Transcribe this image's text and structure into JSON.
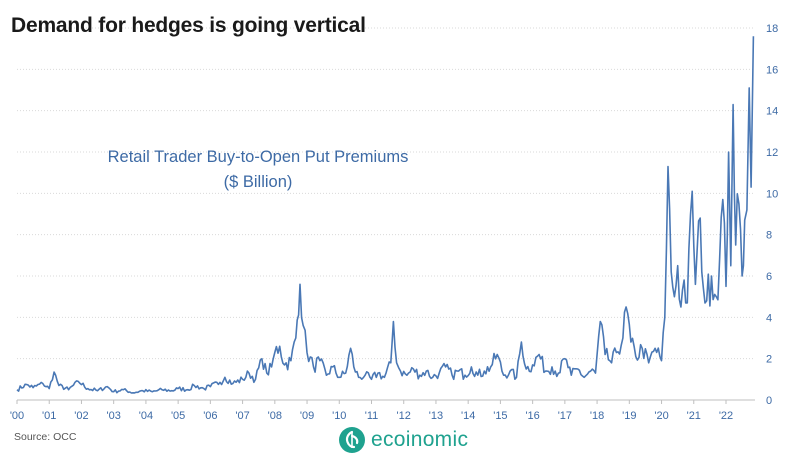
{
  "chart_data": {
    "type": "line",
    "title": "Demand for hedges is going vertical",
    "annotation": [
      "Retail Trader Buy-to-Open Put Premiums",
      "($ Billion)"
    ],
    "xlabel": "",
    "ylabel": "",
    "x_tick_labels": [
      "'00",
      "'01",
      "'02",
      "'03",
      "'04",
      "'05",
      "'06",
      "'07",
      "'08",
      "'09",
      "'10",
      "'11",
      "'12",
      "'13",
      "'14",
      "'15",
      "'16",
      "'17",
      "'18",
      "'19",
      "'20",
      "'21",
      "'22"
    ],
    "y_ticks": [
      0,
      2,
      4,
      6,
      8,
      10,
      12,
      14,
      16,
      18
    ],
    "y_tick_labels": [
      "0",
      "2",
      "4",
      "6",
      "8",
      "10",
      "12",
      "14",
      "16",
      "18"
    ],
    "xlim": [
      2000.0,
      2022.9
    ],
    "ylim": [
      0,
      18
    ],
    "y_axis_side": "right",
    "grid": "horizontal",
    "line_color": "#4a78b5",
    "series": [
      {
        "points": [
          [
            2000.0,
            0.5
          ],
          [
            2000.3,
            0.75
          ],
          [
            2000.5,
            0.6
          ],
          [
            2000.8,
            0.8
          ],
          [
            2001.0,
            0.55
          ],
          [
            2001.15,
            1.35
          ],
          [
            2001.3,
            0.7
          ],
          [
            2001.6,
            0.5
          ],
          [
            2001.9,
            0.9
          ],
          [
            2002.2,
            0.55
          ],
          [
            2002.5,
            0.45
          ],
          [
            2002.8,
            0.65
          ],
          [
            2003.0,
            0.4
          ],
          [
            2003.3,
            0.5
          ],
          [
            2003.6,
            0.35
          ],
          [
            2003.9,
            0.45
          ],
          [
            2004.2,
            0.4
          ],
          [
            2004.5,
            0.5
          ],
          [
            2004.8,
            0.45
          ],
          [
            2005.0,
            0.55
          ],
          [
            2005.3,
            0.5
          ],
          [
            2005.5,
            0.7
          ],
          [
            2005.8,
            0.55
          ],
          [
            2006.0,
            0.65
          ],
          [
            2006.3,
            0.85
          ],
          [
            2006.45,
            1.1
          ],
          [
            2006.7,
            0.8
          ],
          [
            2007.0,
            1.0
          ],
          [
            2007.2,
            1.3
          ],
          [
            2007.4,
            1.0
          ],
          [
            2007.6,
            2.0
          ],
          [
            2007.75,
            1.3
          ],
          [
            2007.9,
            1.6
          ],
          [
            2008.0,
            2.3
          ],
          [
            2008.15,
            2.6
          ],
          [
            2008.3,
            1.7
          ],
          [
            2008.5,
            1.9
          ],
          [
            2008.65,
            3.0
          ],
          [
            2008.78,
            5.6
          ],
          [
            2008.88,
            3.6
          ],
          [
            2009.0,
            2.3
          ],
          [
            2009.2,
            1.6
          ],
          [
            2009.4,
            1.9
          ],
          [
            2009.6,
            1.2
          ],
          [
            2009.8,
            1.6
          ],
          [
            2010.0,
            1.1
          ],
          [
            2010.2,
            1.3
          ],
          [
            2010.35,
            2.5
          ],
          [
            2010.45,
            1.6
          ],
          [
            2010.6,
            1.1
          ],
          [
            2010.8,
            1.2
          ],
          [
            2011.0,
            1.0
          ],
          [
            2011.2,
            1.3
          ],
          [
            2011.4,
            1.1
          ],
          [
            2011.6,
            1.8
          ],
          [
            2011.68,
            3.8
          ],
          [
            2011.78,
            1.8
          ],
          [
            2011.9,
            1.4
          ],
          [
            2012.1,
            1.2
          ],
          [
            2012.3,
            1.5
          ],
          [
            2012.5,
            1.2
          ],
          [
            2012.7,
            1.4
          ],
          [
            2012.9,
            1.1
          ],
          [
            2013.1,
            1.3
          ],
          [
            2013.3,
            1.6
          ],
          [
            2013.5,
            1.2
          ],
          [
            2013.7,
            1.4
          ],
          [
            2013.9,
            1.2
          ],
          [
            2014.1,
            1.6
          ],
          [
            2014.3,
            1.2
          ],
          [
            2014.5,
            1.4
          ],
          [
            2014.7,
            1.6
          ],
          [
            2014.9,
            2.2
          ],
          [
            2015.1,
            1.2
          ],
          [
            2015.3,
            1.4
          ],
          [
            2015.5,
            1.1
          ],
          [
            2015.65,
            2.8
          ],
          [
            2015.8,
            1.5
          ],
          [
            2016.0,
            1.7
          ],
          [
            2016.2,
            2.2
          ],
          [
            2016.4,
            1.4
          ],
          [
            2016.6,
            1.6
          ],
          [
            2016.8,
            1.3
          ],
          [
            2017.0,
            2.0
          ],
          [
            2017.2,
            1.2
          ],
          [
            2017.4,
            1.5
          ],
          [
            2017.6,
            1.1
          ],
          [
            2017.8,
            1.4
          ],
          [
            2017.95,
            1.3
          ],
          [
            2018.1,
            3.8
          ],
          [
            2018.25,
            2.2
          ],
          [
            2018.45,
            1.8
          ],
          [
            2018.6,
            2.3
          ],
          [
            2018.8,
            3.0
          ],
          [
            2018.9,
            4.5
          ],
          [
            2019.05,
            2.8
          ],
          [
            2019.2,
            2.1
          ],
          [
            2019.4,
            2.5
          ],
          [
            2019.6,
            1.8
          ],
          [
            2019.8,
            2.5
          ],
          [
            2020.0,
            1.9
          ],
          [
            2020.1,
            4.0
          ],
          [
            2020.2,
            11.3
          ],
          [
            2020.3,
            6.2
          ],
          [
            2020.4,
            5.0
          ],
          [
            2020.5,
            6.5
          ],
          [
            2020.6,
            4.5
          ],
          [
            2020.7,
            5.8
          ],
          [
            2020.8,
            4.7
          ],
          [
            2020.95,
            10.1
          ],
          [
            2021.05,
            5.6
          ],
          [
            2021.2,
            8.8
          ],
          [
            2021.3,
            5.4
          ],
          [
            2021.4,
            4.8
          ],
          [
            2021.55,
            6.0
          ],
          [
            2021.7,
            5.0
          ],
          [
            2021.8,
            6.8
          ],
          [
            2021.9,
            9.7
          ],
          [
            2022.0,
            5.5
          ],
          [
            2022.08,
            12.0
          ],
          [
            2022.15,
            6.5
          ],
          [
            2022.22,
            14.3
          ],
          [
            2022.3,
            7.5
          ],
          [
            2022.4,
            9.5
          ],
          [
            2022.5,
            6.0
          ],
          [
            2022.58,
            8.7
          ],
          [
            2022.65,
            9.2
          ],
          [
            2022.72,
            15.1
          ],
          [
            2022.78,
            10.3
          ],
          [
            2022.85,
            17.6
          ]
        ]
      }
    ]
  },
  "footer": {
    "source": "Source: OCC",
    "brand": "ecoinomic"
  }
}
